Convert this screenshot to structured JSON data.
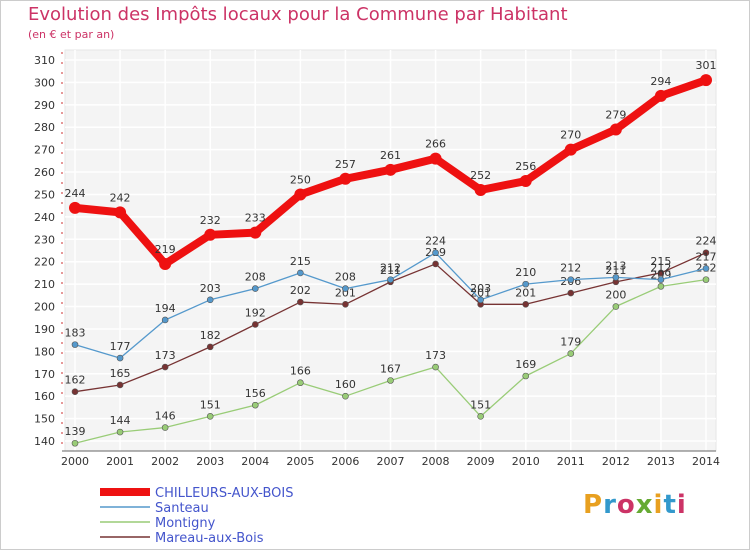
{
  "title": "Evolution des Impôts locaux pour la Commune par Habitant",
  "subtitle": "(en € et par an)",
  "logo": {
    "text": "Proxiti",
    "colors": [
      "#e8a020",
      "#3399cc",
      "#cc3366",
      "#66aa33",
      "#e8a020",
      "#3399cc",
      "#cc3366"
    ]
  },
  "chart_data": {
    "type": "line",
    "x": [
      2000,
      2001,
      2002,
      2003,
      2004,
      2005,
      2006,
      2007,
      2008,
      2009,
      2010,
      2011,
      2012,
      2013,
      2014
    ],
    "ylim": [
      140,
      310
    ],
    "y_ticks": [
      140,
      150,
      160,
      170,
      180,
      190,
      200,
      210,
      220,
      230,
      240,
      250,
      260,
      270,
      280,
      290,
      300,
      310
    ],
    "grid": true,
    "legend_position": "bottom-left",
    "series": [
      {
        "name": "CHILLEURS-AUX-BOIS",
        "color": "#ee1111",
        "values": [
          244,
          242,
          219,
          232,
          233,
          250,
          257,
          261,
          266,
          252,
          256,
          270,
          279,
          294,
          301
        ]
      },
      {
        "name": "Santeau",
        "color": "#5599cc",
        "values": [
          183,
          177,
          194,
          203,
          208,
          215,
          208,
          212,
          224,
          203,
          210,
          212,
          213,
          212,
          217
        ]
      },
      {
        "name": "Montigny",
        "color": "#99cc77",
        "values": [
          139,
          144,
          146,
          151,
          156,
          166,
          160,
          167,
          173,
          151,
          169,
          179,
          200,
          209,
          212
        ]
      },
      {
        "name": "Mareau-aux-Bois",
        "color": "#773333",
        "values": [
          162,
          165,
          173,
          182,
          192,
          202,
          201,
          211,
          219,
          201,
          201,
          206,
          211,
          215,
          224
        ]
      }
    ]
  }
}
